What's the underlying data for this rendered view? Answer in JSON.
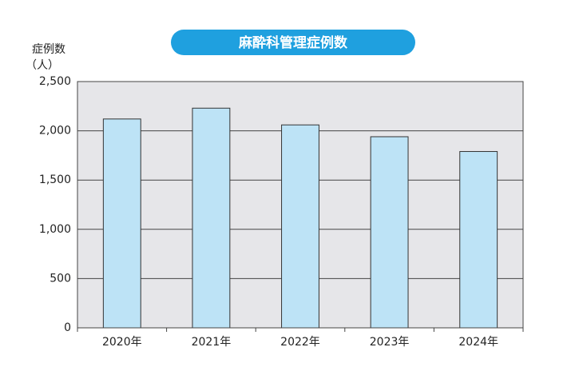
{
  "chart_data": {
    "type": "bar",
    "title": "麻酔科管理症例数",
    "y_label": [
      "症例数",
      "（人）"
    ],
    "categories": [
      "2020年",
      "2021年",
      "2022年",
      "2023年",
      "2024年"
    ],
    "values": [
      2120,
      2230,
      2060,
      1940,
      1790
    ],
    "color": "#bde3f6",
    "ylim": [
      0,
      2500
    ],
    "yticks": [
      0,
      500,
      {
        "value": 1000,
        "label": "1,000"
      },
      {
        "value": 1500,
        "label": "1,500"
      },
      {
        "value": 2000,
        "label": "2,000"
      },
      {
        "value": 2500,
        "label": "2,500"
      }
    ],
    "grid": true
  }
}
